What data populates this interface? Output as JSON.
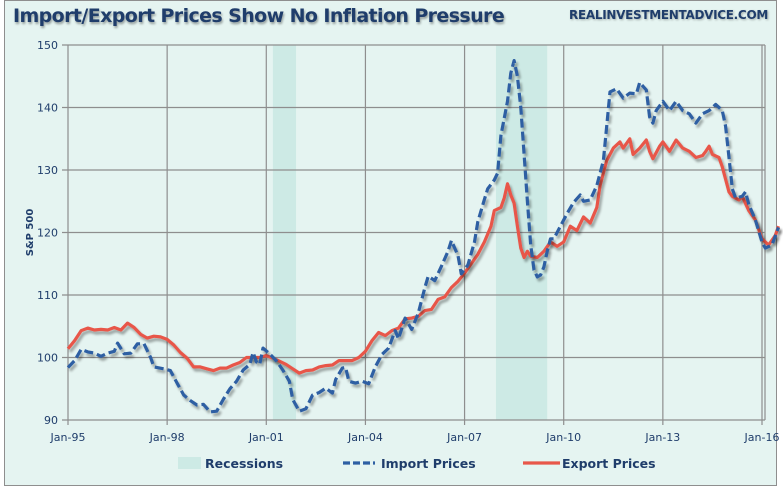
{
  "header": {
    "title": "Import/Export Prices Show No Inflation Pressure",
    "site": "REALINVESTMENTADVICE.COM"
  },
  "colors": {
    "background": "#e5f4f1",
    "recession": "#cdeae5",
    "import": "#2e5fa3",
    "export": "#e8574a",
    "grid": "#8e8e8e",
    "text": "#1f3d6b"
  },
  "chart_data": {
    "type": "line",
    "title": "Import/Export Prices Show No Inflation Pressure",
    "xlabel": "",
    "ylabel": "S&P 500",
    "xlim": [
      1995.0,
      2016.6
    ],
    "ylim": [
      90,
      150
    ],
    "grid": true,
    "legend_position": "bottom",
    "x_ticks": [
      {
        "label": "Jan-95",
        "x": 1995
      },
      {
        "label": "Jan-98",
        "x": 1998
      },
      {
        "label": "Jan-01",
        "x": 2001
      },
      {
        "label": "Jan-04",
        "x": 2004
      },
      {
        "label": "Jan-07",
        "x": 2007
      },
      {
        "label": "Jan-10",
        "x": 2010
      },
      {
        "label": "Jan-13",
        "x": 2013
      },
      {
        "label": "Jan-16",
        "x": 2016
      }
    ],
    "y_ticks": [
      90,
      100,
      110,
      120,
      130,
      140,
      150
    ],
    "recessions": [
      {
        "name": "Recessions",
        "start": 2001.2,
        "end": 2001.9
      },
      {
        "name": "Recessions",
        "start": 2007.95,
        "end": 2009.5
      }
    ],
    "series": [
      {
        "name": "Import Prices",
        "style": "dashed",
        "points": [
          [
            1995.0,
            98.4
          ],
          [
            1995.2,
            99.5
          ],
          [
            1995.4,
            101.3
          ],
          [
            1995.6,
            100.9
          ],
          [
            1995.8,
            100.7
          ],
          [
            1996.0,
            100.2
          ],
          [
            1996.2,
            100.7
          ],
          [
            1996.4,
            101.0
          ],
          [
            1996.5,
            102.3
          ],
          [
            1996.7,
            100.6
          ],
          [
            1996.9,
            100.7
          ],
          [
            1997.1,
            102.2
          ],
          [
            1997.3,
            102.2
          ],
          [
            1997.5,
            100.0
          ],
          [
            1997.6,
            98.5
          ],
          [
            1997.9,
            98.2
          ],
          [
            1998.1,
            97.9
          ],
          [
            1998.3,
            95.9
          ],
          [
            1998.5,
            94.0
          ],
          [
            1998.7,
            93.1
          ],
          [
            1998.9,
            92.4
          ],
          [
            1999.1,
            92.5
          ],
          [
            1999.3,
            91.3
          ],
          [
            1999.5,
            91.4
          ],
          [
            1999.7,
            93.3
          ],
          [
            1999.9,
            95.0
          ],
          [
            2000.1,
            96.2
          ],
          [
            2000.3,
            98.0
          ],
          [
            2000.5,
            98.9
          ],
          [
            2000.6,
            100.8
          ],
          [
            2000.7,
            99.3
          ],
          [
            2000.8,
            98.9
          ],
          [
            2000.9,
            101.5
          ],
          [
            2001.1,
            100.6
          ],
          [
            2001.3,
            99.5
          ],
          [
            2001.5,
            98.0
          ],
          [
            2001.7,
            96.2
          ],
          [
            2001.8,
            93.3
          ],
          [
            2002.0,
            91.4
          ],
          [
            2002.2,
            91.8
          ],
          [
            2002.4,
            94.0
          ],
          [
            2002.6,
            94.4
          ],
          [
            2002.8,
            95.1
          ],
          [
            2003.0,
            94.3
          ],
          [
            2003.1,
            96.5
          ],
          [
            2003.3,
            98.3
          ],
          [
            2003.4,
            98.4
          ],
          [
            2003.5,
            96.2
          ],
          [
            2003.7,
            95.9
          ],
          [
            2003.9,
            96.2
          ],
          [
            2004.1,
            95.8
          ],
          [
            2004.3,
            98.5
          ],
          [
            2004.5,
            100.5
          ],
          [
            2004.7,
            101.5
          ],
          [
            2004.9,
            104.3
          ],
          [
            2005.0,
            103.0
          ],
          [
            2005.2,
            106.3
          ],
          [
            2005.4,
            104.5
          ],
          [
            2005.6,
            107.1
          ],
          [
            2005.8,
            111.2
          ],
          [
            2005.9,
            113.0
          ],
          [
            2006.1,
            112.3
          ],
          [
            2006.3,
            114.6
          ],
          [
            2006.5,
            117.0
          ],
          [
            2006.6,
            118.7
          ],
          [
            2006.8,
            116.3
          ],
          [
            2006.9,
            113.4
          ],
          [
            2007.1,
            114.8
          ],
          [
            2007.3,
            118.5
          ],
          [
            2007.4,
            121.7
          ],
          [
            2007.6,
            125.3
          ],
          [
            2007.7,
            127.0
          ],
          [
            2007.9,
            128.4
          ],
          [
            2008.0,
            129.5
          ],
          [
            2008.1,
            135.5
          ],
          [
            2008.3,
            141.0
          ],
          [
            2008.4,
            145.5
          ],
          [
            2008.5,
            147.5
          ],
          [
            2008.6,
            145.0
          ],
          [
            2008.7,
            140.0
          ],
          [
            2008.8,
            132.5
          ],
          [
            2008.9,
            125.0
          ],
          [
            2009.0,
            118.0
          ],
          [
            2009.1,
            114.0
          ],
          [
            2009.2,
            112.9
          ],
          [
            2009.3,
            113.2
          ],
          [
            2009.4,
            114.5
          ],
          [
            2009.5,
            117.0
          ],
          [
            2009.6,
            119.0
          ],
          [
            2009.7,
            119.0
          ],
          [
            2009.9,
            121.0
          ],
          [
            2010.1,
            123.0
          ],
          [
            2010.3,
            124.8
          ],
          [
            2010.5,
            126.0
          ],
          [
            2010.6,
            125.0
          ],
          [
            2010.8,
            125.2
          ],
          [
            2011.0,
            127.5
          ],
          [
            2011.2,
            131.5
          ],
          [
            2011.3,
            137.0
          ],
          [
            2011.4,
            142.5
          ],
          [
            2011.6,
            143.0
          ],
          [
            2011.8,
            141.5
          ],
          [
            2012.0,
            142.3
          ],
          [
            2012.2,
            142.2
          ],
          [
            2012.3,
            144.0
          ],
          [
            2012.5,
            142.8
          ],
          [
            2012.6,
            138.5
          ],
          [
            2012.7,
            137.5
          ],
          [
            2012.8,
            139.5
          ],
          [
            2013.0,
            141.0
          ],
          [
            2013.2,
            139.5
          ],
          [
            2013.4,
            141.0
          ],
          [
            2013.6,
            139.5
          ],
          [
            2013.8,
            139.0
          ],
          [
            2014.0,
            137.5
          ],
          [
            2014.2,
            139.0
          ],
          [
            2014.4,
            139.5
          ],
          [
            2014.6,
            140.5
          ],
          [
            2014.8,
            139.5
          ],
          [
            2014.9,
            137.0
          ],
          [
            2015.0,
            132.0
          ],
          [
            2015.1,
            127.0
          ],
          [
            2015.2,
            125.5
          ],
          [
            2015.4,
            125.8
          ],
          [
            2015.5,
            126.5
          ],
          [
            2015.6,
            124.5
          ],
          [
            2015.8,
            122.0
          ],
          [
            2016.0,
            118.5
          ],
          [
            2016.1,
            117.5
          ],
          [
            2016.3,
            118.0
          ],
          [
            2016.5,
            120.8
          ]
        ]
      },
      {
        "name": "Export Prices",
        "style": "solid",
        "points": [
          [
            1995.0,
            101.4
          ],
          [
            1995.2,
            102.7
          ],
          [
            1995.4,
            104.3
          ],
          [
            1995.6,
            104.7
          ],
          [
            1995.8,
            104.4
          ],
          [
            1996.0,
            104.5
          ],
          [
            1996.2,
            104.4
          ],
          [
            1996.4,
            104.8
          ],
          [
            1996.6,
            104.4
          ],
          [
            1996.8,
            105.5
          ],
          [
            1997.0,
            104.8
          ],
          [
            1997.2,
            103.7
          ],
          [
            1997.4,
            103.1
          ],
          [
            1997.6,
            103.4
          ],
          [
            1997.8,
            103.3
          ],
          [
            1998.0,
            102.9
          ],
          [
            1998.2,
            102.0
          ],
          [
            1998.4,
            100.8
          ],
          [
            1998.6,
            99.9
          ],
          [
            1998.8,
            98.5
          ],
          [
            1999.0,
            98.5
          ],
          [
            1999.2,
            98.2
          ],
          [
            1999.4,
            97.9
          ],
          [
            1999.6,
            98.3
          ],
          [
            1999.8,
            98.3
          ],
          [
            2000.0,
            98.8
          ],
          [
            2000.2,
            99.2
          ],
          [
            2000.4,
            100.0
          ],
          [
            2000.6,
            100.0
          ],
          [
            2000.8,
            100.0
          ],
          [
            2001.0,
            100.3
          ],
          [
            2001.2,
            99.9
          ],
          [
            2001.4,
            99.4
          ],
          [
            2001.6,
            98.9
          ],
          [
            2001.8,
            98.2
          ],
          [
            2002.0,
            97.5
          ],
          [
            2002.2,
            97.9
          ],
          [
            2002.4,
            98.0
          ],
          [
            2002.6,
            98.5
          ],
          [
            2002.8,
            98.7
          ],
          [
            2003.0,
            98.8
          ],
          [
            2003.2,
            99.5
          ],
          [
            2003.4,
            99.5
          ],
          [
            2003.6,
            99.5
          ],
          [
            2003.8,
            100.0
          ],
          [
            2004.0,
            101.0
          ],
          [
            2004.2,
            102.7
          ],
          [
            2004.4,
            104.0
          ],
          [
            2004.6,
            103.5
          ],
          [
            2004.8,
            104.3
          ],
          [
            2005.0,
            104.7
          ],
          [
            2005.2,
            106.2
          ],
          [
            2005.4,
            106.3
          ],
          [
            2005.6,
            106.6
          ],
          [
            2005.8,
            107.5
          ],
          [
            2006.0,
            107.7
          ],
          [
            2006.2,
            109.3
          ],
          [
            2006.4,
            109.7
          ],
          [
            2006.6,
            111.2
          ],
          [
            2006.8,
            112.2
          ],
          [
            2007.0,
            113.5
          ],
          [
            2007.2,
            115.0
          ],
          [
            2007.4,
            116.5
          ],
          [
            2007.6,
            118.5
          ],
          [
            2007.8,
            121.0
          ],
          [
            2007.9,
            123.5
          ],
          [
            2008.1,
            124.0
          ],
          [
            2008.2,
            125.5
          ],
          [
            2008.3,
            127.8
          ],
          [
            2008.4,
            126.0
          ],
          [
            2008.5,
            124.7
          ],
          [
            2008.6,
            121.0
          ],
          [
            2008.7,
            117.5
          ],
          [
            2008.8,
            116.0
          ],
          [
            2008.9,
            117.0
          ],
          [
            2009.0,
            116.2
          ],
          [
            2009.2,
            116.0
          ],
          [
            2009.4,
            117.0
          ],
          [
            2009.6,
            118.5
          ],
          [
            2009.8,
            117.8
          ],
          [
            2010.0,
            118.5
          ],
          [
            2010.2,
            121.0
          ],
          [
            2010.4,
            120.3
          ],
          [
            2010.6,
            122.5
          ],
          [
            2010.8,
            121.5
          ],
          [
            2011.0,
            124.0
          ],
          [
            2011.1,
            127.5
          ],
          [
            2011.3,
            131.5
          ],
          [
            2011.5,
            133.5
          ],
          [
            2011.7,
            134.5
          ],
          [
            2011.8,
            133.5
          ],
          [
            2012.0,
            135.0
          ],
          [
            2012.1,
            132.5
          ],
          [
            2012.3,
            133.5
          ],
          [
            2012.5,
            134.8
          ],
          [
            2012.6,
            133.0
          ],
          [
            2012.7,
            131.8
          ],
          [
            2012.9,
            133.8
          ],
          [
            2013.0,
            134.5
          ],
          [
            2013.2,
            133.0
          ],
          [
            2013.4,
            134.8
          ],
          [
            2013.6,
            133.5
          ],
          [
            2013.8,
            133.0
          ],
          [
            2014.0,
            132.0
          ],
          [
            2014.2,
            132.3
          ],
          [
            2014.3,
            133.0
          ],
          [
            2014.4,
            133.8
          ],
          [
            2014.5,
            132.5
          ],
          [
            2014.7,
            132.0
          ],
          [
            2014.8,
            130.5
          ],
          [
            2015.0,
            126.5
          ],
          [
            2015.1,
            125.8
          ],
          [
            2015.3,
            125.2
          ],
          [
            2015.4,
            125.8
          ],
          [
            2015.6,
            123.5
          ],
          [
            2015.8,
            122.0
          ],
          [
            2016.0,
            119.0
          ],
          [
            2016.2,
            118.0
          ],
          [
            2016.4,
            119.5
          ],
          [
            2016.5,
            121.0
          ]
        ]
      }
    ],
    "legend": [
      {
        "name": "Recessions",
        "kind": "band"
      },
      {
        "name": "Import Prices",
        "kind": "dashed"
      },
      {
        "name": "Export Prices",
        "kind": "solid"
      }
    ]
  }
}
